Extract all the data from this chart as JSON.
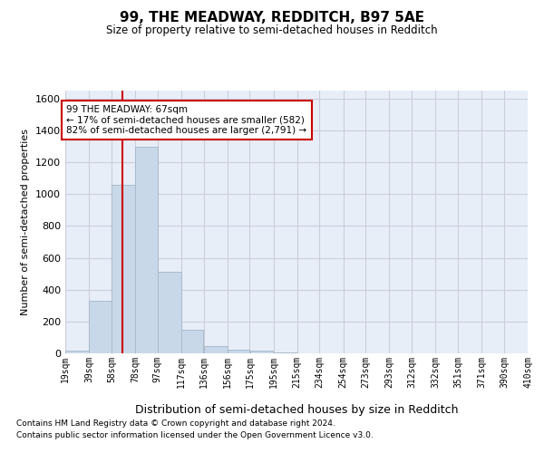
{
  "title1": "99, THE MEADWAY, REDDITCH, B97 5AE",
  "title2": "Size of property relative to semi-detached houses in Redditch",
  "xlabel": "Distribution of semi-detached houses by size in Redditch",
  "ylabel": "Number of semi-detached properties",
  "footnote1": "Contains HM Land Registry data © Crown copyright and database right 2024.",
  "footnote2": "Contains public sector information licensed under the Open Government Licence v3.0.",
  "annotation_line1": "99 THE MEADWAY: 67sqm",
  "annotation_line2": "← 17% of semi-detached houses are smaller (582)",
  "annotation_line3": "82% of semi-detached houses are larger (2,791) →",
  "property_size": 67,
  "bin_edges": [
    19,
    39,
    58,
    78,
    97,
    117,
    136,
    156,
    175,
    195,
    215,
    234,
    254,
    273,
    293,
    312,
    332,
    351,
    371,
    390,
    410
  ],
  "bar_values": [
    15,
    330,
    1060,
    1295,
    510,
    150,
    45,
    25,
    15,
    5,
    0,
    0,
    0,
    0,
    0,
    0,
    0,
    0,
    0,
    0
  ],
  "bar_color": "#c8d8e8",
  "bar_edgecolor": "#aabbcc",
  "vline_color": "#cc0000",
  "vline_x": 67,
  "ylim": [
    0,
    1650
  ],
  "yticks": [
    0,
    200,
    400,
    600,
    800,
    1000,
    1200,
    1400,
    1600
  ],
  "grid_color": "#ccccdd",
  "background_color": "#e8eef8"
}
